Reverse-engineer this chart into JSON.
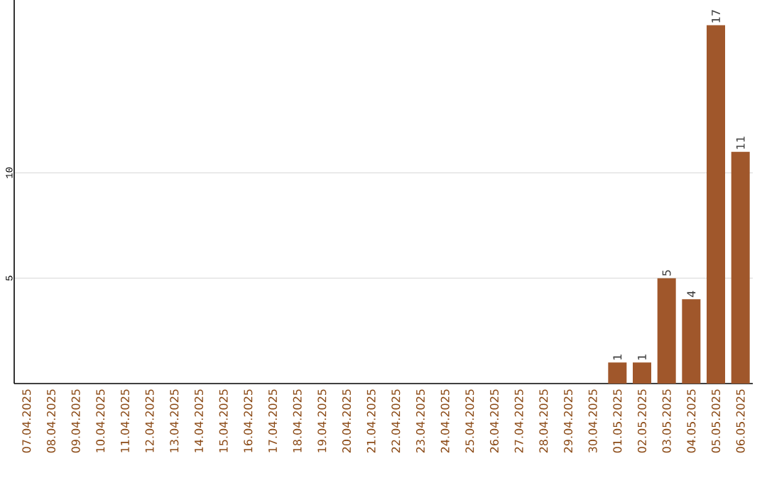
{
  "chart_data": {
    "type": "bar",
    "categories": [
      "07.04.2025",
      "08.04.2025",
      "09.04.2025",
      "10.04.2025",
      "11.04.2025",
      "12.04.2025",
      "13.04.2025",
      "14.04.2025",
      "15.04.2025",
      "16.04.2025",
      "17.04.2025",
      "18.04.2025",
      "19.04.2025",
      "20.04.2025",
      "21.04.2025",
      "22.04.2025",
      "23.04.2025",
      "24.04.2025",
      "25.04.2025",
      "26.04.2025",
      "27.04.2025",
      "28.04.2025",
      "29.04.2025",
      "30.04.2025",
      "01.05.2025",
      "02.05.2025",
      "03.05.2025",
      "04.05.2025",
      "05.05.2025",
      "06.05.2025"
    ],
    "values": [
      0,
      0,
      0,
      0,
      0,
      0,
      0,
      0,
      0,
      0,
      0,
      0,
      0,
      0,
      0,
      0,
      0,
      0,
      0,
      0,
      0,
      0,
      0,
      0,
      1,
      1,
      5,
      4,
      17,
      11
    ],
    "value_labels": [
      null,
      null,
      null,
      null,
      null,
      null,
      null,
      null,
      null,
      null,
      null,
      null,
      null,
      null,
      null,
      null,
      null,
      null,
      null,
      null,
      null,
      null,
      null,
      null,
      "1",
      "1",
      "5",
      "4",
      "17",
      "11"
    ],
    "color": "#a0572b",
    "ylim": [
      0,
      18.2
    ],
    "yticks": [
      5,
      10
    ],
    "grid": "y"
  }
}
